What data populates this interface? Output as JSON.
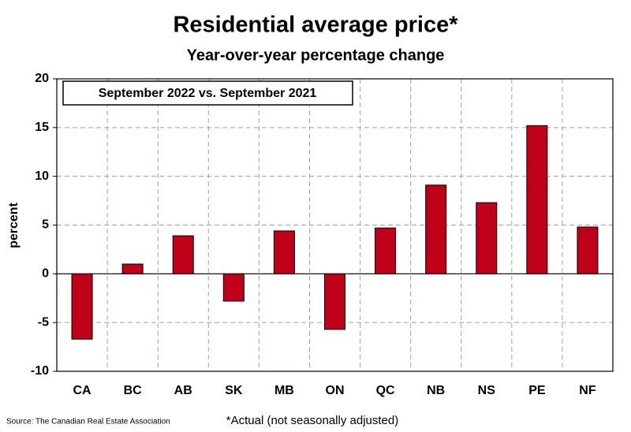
{
  "chart_data": {
    "type": "bar",
    "title": "Residential average price*",
    "subtitle": "Year-over-year percentage change",
    "annotation": "September 2022 vs. September 2021",
    "ylabel": "percent",
    "note": "*Actual (not seasonally adjusted)",
    "source": "Source: The Canadian Real Estate Association",
    "categories": [
      "CA",
      "BC",
      "AB",
      "SK",
      "MB",
      "ON",
      "QC",
      "NB",
      "NS",
      "PE",
      "NF"
    ],
    "values": [
      -6.7,
      1.0,
      3.9,
      -2.8,
      4.4,
      -5.7,
      4.7,
      9.1,
      7.3,
      15.2,
      4.8
    ],
    "color": "#c00018",
    "ylim": [
      -10,
      20
    ],
    "yticks": [
      -10,
      -5,
      0,
      5,
      10,
      15,
      20
    ],
    "grid": true
  }
}
